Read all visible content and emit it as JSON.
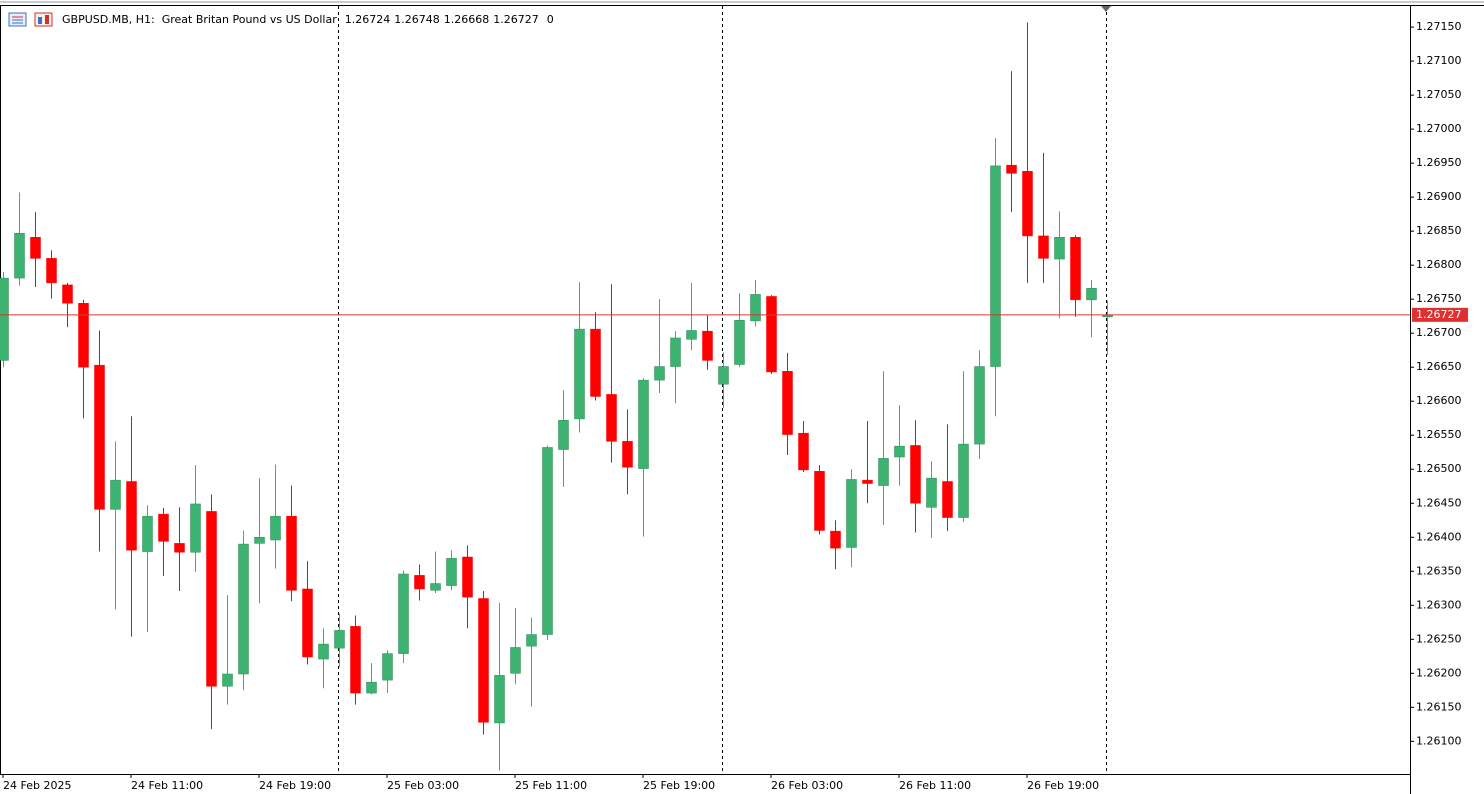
{
  "chart_data": {
    "type": "candlestick",
    "title": "GBPUSD.MB, H1:  Great Britan Pound vs US Dollar",
    "spread": 0,
    "categories": [
      "24 Feb 2025",
      null,
      null,
      null,
      null,
      null,
      null,
      null,
      "24 Feb 11:00",
      null,
      null,
      null,
      null,
      null,
      null,
      null,
      "24 Feb 19:00",
      null,
      null,
      null,
      null,
      null,
      null,
      null,
      "25 Feb 03:00",
      null,
      null,
      null,
      null,
      null,
      null,
      null,
      "25 Feb 11:00",
      null,
      null,
      null,
      null,
      null,
      null,
      null,
      "25 Feb 19:00",
      null,
      null,
      null,
      null,
      null,
      null,
      null,
      "26 Feb 03:00",
      null,
      null,
      null,
      null,
      null,
      null,
      null,
      "26 Feb 11:00",
      null,
      null,
      null,
      null,
      null,
      null,
      null,
      "26 Feb 19:00",
      null,
      null,
      null,
      null,
      null
    ],
    "open": [
      1.2666,
      1.26781,
      1.26841,
      1.2681,
      1.26771,
      1.26744,
      1.26653,
      1.26441,
      1.26482,
      1.26379,
      1.26434,
      1.26391,
      1.26378,
      1.26438,
      1.26181,
      1.26199,
      1.26391,
      1.26396,
      1.26431,
      1.26324,
      1.26221,
      1.26237,
      1.26269,
      1.26171,
      1.2619,
      1.26229,
      1.26344,
      1.26322,
      1.26329,
      1.26371,
      1.2631,
      1.26127,
      1.262,
      1.2624,
      1.26257,
      1.26529,
      1.26574,
      1.26706,
      1.2661,
      1.26541,
      1.26501,
      1.26631,
      1.26651,
      1.26691,
      1.26703,
      1.26625,
      1.26654,
      1.26718,
      1.26754,
      1.26644,
      1.26553,
      1.26497,
      1.26409,
      1.26385,
      1.26484,
      1.26476,
      1.26518,
      1.26535,
      1.26444,
      1.26482,
      1.26429,
      1.26537,
      1.26651,
      1.26947,
      1.26938,
      1.26843,
      1.26809,
      1.26841,
      1.26749,
      1.26724
    ],
    "high": [
      1.2679,
      1.26907,
      1.26878,
      1.26822,
      1.26774,
      1.26749,
      1.26704,
      1.26541,
      1.26578,
      1.26447,
      1.26443,
      1.26444,
      1.26506,
      1.26463,
      1.26315,
      1.2641,
      1.26487,
      1.26507,
      1.26476,
      1.26365,
      1.26266,
      1.26288,
      1.26285,
      1.26215,
      1.26234,
      1.26351,
      1.2636,
      1.26379,
      1.26381,
      1.26388,
      1.26321,
      1.26304,
      1.26296,
      1.26282,
      1.26535,
      1.26616,
      1.26775,
      1.26731,
      1.26772,
      1.26588,
      1.26634,
      1.2675,
      1.26703,
      1.26774,
      1.26726,
      1.26672,
      1.26759,
      1.26778,
      1.26756,
      1.26671,
      1.26571,
      1.26506,
      1.26425,
      1.265,
      1.26571,
      1.26644,
      1.26594,
      1.26572,
      1.26512,
      1.26566,
      1.26644,
      1.26675,
      1.26987,
      1.27085,
      1.27157,
      1.26965,
      1.26879,
      1.26844,
      1.26778,
      1.26748
    ],
    "low": [
      1.2665,
      1.2677,
      1.26768,
      1.26751,
      1.26709,
      1.26575,
      1.26379,
      1.26294,
      1.26254,
      1.26261,
      1.26343,
      1.26321,
      1.26349,
      1.26118,
      1.26154,
      1.26175,
      1.26303,
      1.26354,
      1.26306,
      1.26213,
      1.26178,
      1.26209,
      1.26154,
      1.26169,
      1.26171,
      1.26215,
      1.26307,
      1.26318,
      1.26322,
      1.26266,
      1.2611,
      1.26057,
      1.26184,
      1.26151,
      1.26249,
      1.26474,
      1.26554,
      1.26601,
      1.2651,
      1.26463,
      1.26401,
      1.26612,
      1.26597,
      1.26675,
      1.26646,
      1.2659,
      1.2665,
      1.2671,
      1.2664,
      1.26521,
      1.26496,
      1.26404,
      1.26353,
      1.26356,
      1.2645,
      1.26418,
      1.26476,
      1.26407,
      1.26399,
      1.26409,
      1.26422,
      1.26515,
      1.26578,
      1.26878,
      1.26774,
      1.26774,
      1.26722,
      1.26724,
      1.26694,
      1.26668
    ],
    "close": [
      1.26781,
      1.26847,
      1.2681,
      1.26774,
      1.26744,
      1.2665,
      1.26441,
      1.26484,
      1.26381,
      1.26431,
      1.26394,
      1.26378,
      1.26449,
      1.26181,
      1.26199,
      1.2639,
      1.264,
      1.26431,
      1.26322,
      1.26224,
      1.26243,
      1.26263,
      1.26171,
      1.26187,
      1.26229,
      1.26346,
      1.26324,
      1.26332,
      1.26369,
      1.26312,
      1.26128,
      1.26197,
      1.26238,
      1.26257,
      1.26532,
      1.26572,
      1.26706,
      1.26607,
      1.26541,
      1.26503,
      1.26631,
      1.26651,
      1.26693,
      1.26704,
      1.2666,
      1.26651,
      1.26719,
      1.26757,
      1.26643,
      1.26551,
      1.26499,
      1.2641,
      1.26384,
      1.26485,
      1.26479,
      1.26516,
      1.26534,
      1.2645,
      1.26487,
      1.26429,
      1.26537,
      1.26651,
      1.26946,
      1.26935,
      1.26843,
      1.2681,
      1.26841,
      1.26749,
      1.26766,
      1.26727
    ],
    "up_color": "#3cb371",
    "down_color": "#ff0000",
    "price_line_color": "#e03030",
    "ylim": [
      1.26052,
      1.27181
    ],
    "yticks": [
      {
        "value": 1.2715,
        "label": "1.27150"
      },
      {
        "value": 1.271,
        "label": "1.27100"
      },
      {
        "value": 1.2705,
        "label": "1.27050"
      },
      {
        "value": 1.27,
        "label": "1.27000"
      },
      {
        "value": 1.2695,
        "label": "1.26950"
      },
      {
        "value": 1.269,
        "label": "1.26900"
      },
      {
        "value": 1.2685,
        "label": "1.26850"
      },
      {
        "value": 1.268,
        "label": "1.26800"
      },
      {
        "value": 1.2675,
        "label": "1.26750"
      },
      {
        "value": 1.267,
        "label": "1.26700"
      },
      {
        "value": 1.2665,
        "label": "1.26650"
      },
      {
        "value": 1.266,
        "label": "1.26600"
      },
      {
        "value": 1.2655,
        "label": "1.26550"
      },
      {
        "value": 1.265,
        "label": "1.26500"
      },
      {
        "value": 1.2645,
        "label": "1.26450"
      },
      {
        "value": 1.264,
        "label": "1.26400"
      },
      {
        "value": 1.2635,
        "label": "1.26350"
      },
      {
        "value": 1.263,
        "label": "1.26300"
      },
      {
        "value": 1.2625,
        "label": "1.26250"
      },
      {
        "value": 1.262,
        "label": "1.26200"
      },
      {
        "value": 1.2615,
        "label": "1.26150"
      },
      {
        "value": 1.261,
        "label": "1.26100"
      }
    ],
    "grid": false
  }
}
